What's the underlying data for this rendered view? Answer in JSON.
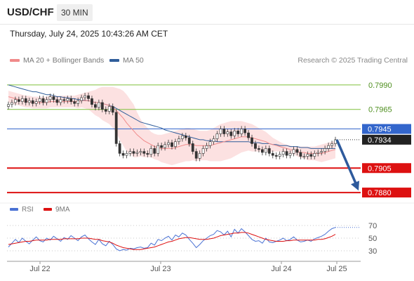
{
  "header": {
    "symbol": "USD/CHF",
    "timeframe": "30 MIN"
  },
  "datetime": "Thursday, July 24, 2025 10:43:26 AM CET",
  "legend": {
    "bollinger": {
      "label": "MA 20 + Bollinger Bands",
      "color": "#f08a8a"
    },
    "ma50": {
      "label": "MA 50",
      "color": "#2f5d9a"
    }
  },
  "credit": "Research © 2025 Trading Central",
  "rsi_legend": {
    "rsi": {
      "label": "RSI",
      "color": "#4a72d4"
    },
    "ma9": {
      "label": "9MA",
      "color": "#dd1111"
    }
  },
  "chart_data": [
    {
      "type": "line",
      "title": "USD/CHF 30 MIN",
      "ylim": [
        0.787,
        0.8005
      ],
      "x_ticks": [
        "Jul 22",
        "Jul 23",
        "Jul 24",
        "Jul 25"
      ],
      "levels": [
        {
          "value": 0.799,
          "label": "0.7990",
          "color": "#7fbf3a",
          "style": "thin"
        },
        {
          "value": 0.7965,
          "label": "0.7965",
          "color": "#7fbf3a",
          "style": "thin"
        },
        {
          "value": 0.7945,
          "label": "0.7945",
          "color": "#3366cc",
          "style": "pivot"
        },
        {
          "value": 0.7905,
          "label": "0.7905",
          "color": "#dd1111",
          "style": "thick"
        },
        {
          "value": 0.788,
          "label": "0.7880",
          "color": "#dd1111",
          "style": "thick"
        }
      ],
      "current_price": {
        "value": 0.7934,
        "label": "0.7934"
      },
      "arrow": {
        "from": 0.7934,
        "to": 0.7882
      },
      "series": [
        {
          "name": "Price",
          "color": "#333333",
          "values": [
            0.797,
            0.7972,
            0.7975,
            0.7973,
            0.7976,
            0.7972,
            0.7974,
            0.7971,
            0.7973,
            0.7976,
            0.7972,
            0.7975,
            0.7978,
            0.7975,
            0.7972,
            0.7975,
            0.7974,
            0.7976,
            0.7973,
            0.7971,
            0.7974,
            0.7977,
            0.7979,
            0.7976,
            0.797,
            0.7967,
            0.7972,
            0.7965,
            0.7963,
            0.7968,
            0.7962,
            0.793,
            0.792,
            0.7918,
            0.792,
            0.7922,
            0.792,
            0.7921,
            0.7922,
            0.792,
            0.7919,
            0.7925,
            0.792,
            0.7928,
            0.7926,
            0.7929,
            0.7931,
            0.7927,
            0.7932,
            0.7935,
            0.7938,
            0.7936,
            0.793,
            0.7922,
            0.7915,
            0.792,
            0.7925,
            0.7928,
            0.7932,
            0.7935,
            0.794,
            0.7945,
            0.794,
            0.7942,
            0.7938,
            0.7943,
            0.794,
            0.7945,
            0.7941,
            0.7936,
            0.793,
            0.7925,
            0.7924,
            0.7921,
            0.7925,
            0.792,
            0.7918,
            0.7917,
            0.7919,
            0.7922,
            0.7918,
            0.792,
            0.7924,
            0.7921,
            0.7917,
            0.7917,
            0.7919,
            0.7917,
            0.792,
            0.7921,
            0.7922,
            0.7925,
            0.7928,
            0.793,
            0.7934
          ]
        },
        {
          "name": "MA 20",
          "color": "#f08a8a",
          "values": [
            0.7978,
            0.7977,
            0.7976,
            0.7975,
            0.7974,
            0.7973,
            0.7973,
            0.7972,
            0.7972,
            0.7972,
            0.7972,
            0.7972,
            0.7973,
            0.7973,
            0.7973,
            0.7973,
            0.7973,
            0.7973,
            0.7973,
            0.7973,
            0.7973,
            0.7974,
            0.7974,
            0.7974,
            0.7973,
            0.7972,
            0.7972,
            0.7971,
            0.797,
            0.7969,
            0.7967,
            0.7964,
            0.796,
            0.7956,
            0.7951,
            0.7947,
            0.7943,
            0.7939,
            0.7936,
            0.7933,
            0.7931,
            0.7929,
            0.7927,
            0.7926,
            0.7925,
            0.7925,
            0.7925,
            0.7925,
            0.7926,
            0.7927,
            0.7928,
            0.7929,
            0.7929,
            0.7929,
            0.7928,
            0.7928,
            0.7928,
            0.7928,
            0.7928,
            0.7929,
            0.793,
            0.7931,
            0.7932,
            0.7933,
            0.7934,
            0.7935,
            0.7936,
            0.7937,
            0.7937,
            0.7937,
            0.7936,
            0.7935,
            0.7934,
            0.7933,
            0.7932,
            0.793,
            0.7929,
            0.7928,
            0.7927,
            0.7926,
            0.7925,
            0.7924,
            0.7923,
            0.7922,
            0.7921,
            0.7921,
            0.792,
            0.792,
            0.792,
            0.792,
            0.792,
            0.7921,
            0.7922,
            0.7923,
            0.7924
          ]
        },
        {
          "name": "MA 50",
          "color": "#2f5d9a",
          "values": [
            0.799,
            0.7989,
            0.7988,
            0.7987,
            0.7986,
            0.7985,
            0.7984,
            0.7983,
            0.7983,
            0.7982,
            0.7981,
            0.798,
            0.798,
            0.7979,
            0.7978,
            0.7978,
            0.7977,
            0.7977,
            0.7976,
            0.7976,
            0.7975,
            0.7975,
            0.7974,
            0.7974,
            0.7973,
            0.7972,
            0.7972,
            0.7971,
            0.797,
            0.7969,
            0.7968,
            0.7966,
            0.7964,
            0.7962,
            0.796,
            0.7958,
            0.7956,
            0.7954,
            0.7952,
            0.7951,
            0.795,
            0.7949,
            0.7948,
            0.7947,
            0.7946,
            0.7944,
            0.7943,
            0.7942,
            0.7941,
            0.794,
            0.7939,
            0.7938,
            0.7937,
            0.7936,
            0.7935,
            0.7934,
            0.7934,
            0.7933,
            0.7933,
            0.7933,
            0.7932,
            0.7932,
            0.7932,
            0.7932,
            0.7932,
            0.7932,
            0.7932,
            0.7932,
            0.7932,
            0.7932,
            0.7931,
            0.7931,
            0.7931,
            0.793,
            0.793,
            0.793,
            0.7929,
            0.7929,
            0.7928,
            0.7928,
            0.7928,
            0.7927,
            0.7927,
            0.7927,
            0.7926,
            0.7926,
            0.7926,
            0.7925,
            0.7925,
            0.7925,
            0.7925,
            0.7925,
            0.7925,
            0.7925,
            0.7925
          ]
        },
        {
          "name": "Bollinger Upper",
          "color": "#fbd0d0",
          "values": [
            0.7984,
            0.7983,
            0.7982,
            0.7981,
            0.798,
            0.7979,
            0.7979,
            0.7978,
            0.7978,
            0.7978,
            0.7978,
            0.7978,
            0.7979,
            0.7979,
            0.7979,
            0.7979,
            0.7979,
            0.7979,
            0.7979,
            0.7979,
            0.798,
            0.7981,
            0.7982,
            0.7983,
            0.7984,
            0.7985,
            0.7987,
            0.7988,
            0.7988,
            0.7988,
            0.7988,
            0.7987,
            0.7986,
            0.7984,
            0.798,
            0.7975,
            0.797,
            0.7962,
            0.7955,
            0.795,
            0.7946,
            0.7942,
            0.794,
            0.7939,
            0.7939,
            0.794,
            0.7941,
            0.7942,
            0.7943,
            0.7944,
            0.7945,
            0.7946,
            0.7946,
            0.7945,
            0.7944,
            0.7943,
            0.7943,
            0.7943,
            0.7944,
            0.7946,
            0.7948,
            0.795,
            0.7951,
            0.7952,
            0.7953,
            0.7953,
            0.7953,
            0.7953,
            0.7952,
            0.7951,
            0.795,
            0.7948,
            0.7946,
            0.7944,
            0.7942,
            0.7939,
            0.7936,
            0.7934,
            0.7932,
            0.793,
            0.7929,
            0.7928,
            0.7927,
            0.7927,
            0.7927,
            0.7927,
            0.7927,
            0.7927,
            0.7927,
            0.7928,
            0.7929,
            0.793,
            0.7931,
            0.7932,
            0.7933
          ]
        },
        {
          "name": "Bollinger Lower",
          "color": "#fbd0d0",
          "values": [
            0.7972,
            0.7971,
            0.797,
            0.7969,
            0.7968,
            0.7967,
            0.7967,
            0.7966,
            0.7966,
            0.7966,
            0.7966,
            0.7966,
            0.7967,
            0.7967,
            0.7967,
            0.7967,
            0.7967,
            0.7967,
            0.7967,
            0.7967,
            0.7966,
            0.7967,
            0.7966,
            0.7965,
            0.7962,
            0.7959,
            0.7957,
            0.7954,
            0.7952,
            0.795,
            0.7946,
            0.7941,
            0.7934,
            0.7928,
            0.7922,
            0.7919,
            0.7916,
            0.7916,
            0.7917,
            0.7916,
            0.7916,
            0.7916,
            0.7914,
            0.7913,
            0.7911,
            0.791,
            0.7909,
            0.7908,
            0.7909,
            0.791,
            0.7911,
            0.7912,
            0.7912,
            0.7913,
            0.7912,
            0.7913,
            0.7913,
            0.7913,
            0.7912,
            0.7912,
            0.7912,
            0.7912,
            0.7913,
            0.7914,
            0.7915,
            0.7917,
            0.7919,
            0.7921,
            0.7922,
            0.7923,
            0.7922,
            0.7922,
            0.7922,
            0.7922,
            0.7922,
            0.7921,
            0.7922,
            0.7922,
            0.7922,
            0.7922,
            0.7921,
            0.792,
            0.7919,
            0.7917,
            0.7915,
            0.7915,
            0.7913,
            0.7913,
            0.7913,
            0.7912,
            0.7911,
            0.7912,
            0.7913,
            0.7914,
            0.7915
          ]
        }
      ]
    },
    {
      "type": "line",
      "title": "RSI",
      "ylim": [
        20,
        80
      ],
      "y_ticks": [
        30,
        50,
        70
      ],
      "series": [
        {
          "name": "RSI",
          "color": "#4a72d4",
          "values": [
            36,
            42,
            48,
            43,
            50,
            45,
            41,
            47,
            52,
            46,
            44,
            50,
            47,
            53,
            49,
            45,
            51,
            48,
            54,
            50,
            46,
            52,
            55,
            49,
            44,
            40,
            48,
            41,
            38,
            45,
            40,
            33,
            30,
            32,
            31,
            34,
            33,
            35,
            36,
            34,
            35,
            42,
            39,
            48,
            46,
            50,
            53,
            47,
            55,
            52,
            58,
            55,
            48,
            42,
            35,
            40,
            46,
            50,
            54,
            56,
            62,
            60,
            55,
            61,
            52,
            64,
            58,
            65,
            60,
            54,
            48,
            45,
            46,
            42,
            50,
            44,
            43,
            45,
            47,
            50,
            46,
            48,
            52,
            47,
            44,
            45,
            47,
            45,
            49,
            51,
            53,
            56,
            61,
            65,
            67
          ]
        },
        {
          "name": "9MA",
          "color": "#dd1111",
          "values": [
            40,
            41,
            42,
            43,
            44,
            45,
            45,
            46,
            47,
            47,
            47,
            47,
            48,
            48,
            48,
            48,
            49,
            49,
            49,
            49,
            49,
            50,
            50,
            50,
            49,
            48,
            48,
            46,
            45,
            44,
            42,
            39,
            37,
            35,
            34,
            33,
            32,
            32,
            32,
            33,
            34,
            35,
            36,
            38,
            40,
            42,
            44,
            45,
            47,
            49,
            50,
            51,
            51,
            50,
            49,
            48,
            48,
            48,
            49,
            50,
            52,
            54,
            55,
            56,
            57,
            58,
            58,
            59,
            59,
            58,
            56,
            54,
            52,
            50,
            48,
            47,
            46,
            45,
            45,
            45,
            46,
            46,
            47,
            47,
            47,
            47,
            47,
            47,
            47,
            48,
            48,
            49,
            51,
            53,
            56
          ]
        }
      ]
    }
  ]
}
